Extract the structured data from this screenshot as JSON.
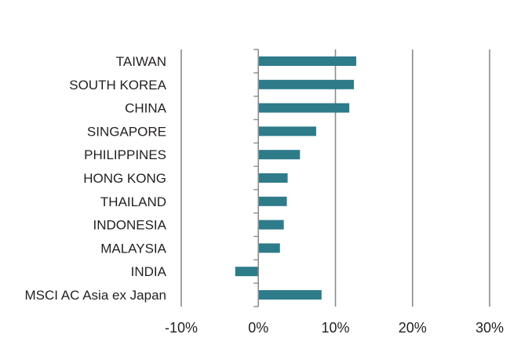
{
  "chart_data": {
    "type": "bar",
    "orientation": "horizontal",
    "categories": [
      "TAIWAN",
      "SOUTH KOREA",
      "CHINA",
      "SINGAPORE",
      "PHILIPPINES",
      "HONG KONG",
      "THAILAND",
      "INDONESIA",
      "MALAYSIA",
      "INDIA",
      "MSCI AC Asia ex Japan"
    ],
    "values": [
      12.7,
      12.4,
      11.8,
      7.5,
      5.4,
      3.8,
      3.7,
      3.3,
      2.8,
      -3.0,
      8.2
    ],
    "xlim": [
      -10,
      30
    ],
    "xticks": [
      -10,
      0,
      10,
      20,
      30
    ],
    "xtick_labels": [
      "-10%",
      "0%",
      "10%",
      "20%",
      "30%"
    ],
    "title": "",
    "xlabel": "",
    "ylabel": "",
    "grid": "vertical",
    "legend": "none",
    "colors": {
      "bar": "#2e7b8a",
      "grid": "#8c8c8c",
      "axis": "#8c8c8c",
      "text": "#231f20"
    }
  }
}
